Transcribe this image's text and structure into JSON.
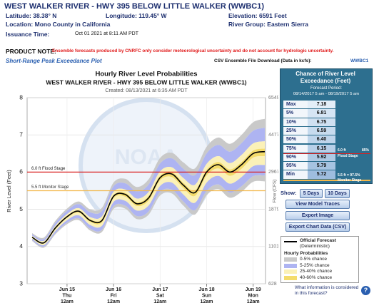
{
  "header": {
    "title": "WEST WALKER RIVER - HWY 395 BELOW LITTLE WALKER (WWBC1)",
    "latitude": "Latitude: 38.38° N",
    "longitude": "Longitude: 119.45° W",
    "elevation": "Elevation: 6591 Feet",
    "location": "Location: Mono County in California",
    "river_group": "River Group: Eastern Sierra",
    "issuance_label": "Issuance Time:",
    "issuance_time": "Oct 01 2021 at 8:11 AM PDT"
  },
  "product_note": {
    "label": "PRODUCT NOTE:",
    "text": "Ensemble forecasts produced by CNRFC only consider meteorological uncertainty and do not account for hydrologic uncertainty."
  },
  "plot_link": "Short-Range Peak Exceedance Plot",
  "csv": {
    "label": "CSV Ensemble File Download (Data in kcfs):",
    "link": "WWBC1"
  },
  "chart_data": {
    "type": "area",
    "title": "Hourly River Level Probabilities",
    "subtitle": "WEST WALKER RIVER - HWY 395 BELOW LITTLE WALKER (WWBC1)",
    "created": "Created: 08/13/2021 at 6:35 AM PDT",
    "ylabel": "River Level (Feet)",
    "y2label": "Flow (CFS)",
    "watermark": "NOAA",
    "categories": [
      null,
      null,
      null,
      [
        "Jun 15",
        "Thu",
        "12am"
      ],
      null,
      null,
      null,
      [
        "Jun 16",
        "Fri",
        "12am"
      ],
      null,
      null,
      null,
      [
        "Jun 17",
        "Sat",
        "12am"
      ],
      null,
      null,
      null,
      [
        "Jun 18",
        "Sun",
        "12am"
      ],
      null,
      null,
      null,
      [
        "Jun 19",
        "Mon",
        "12am"
      ],
      null
    ],
    "ylim": [
      3,
      8
    ],
    "yticks": [
      3,
      4,
      5,
      6,
      7,
      8
    ],
    "y2ticks": [
      628,
      1101,
      1879,
      2967,
      4477,
      6549
    ],
    "grid": true,
    "thresholds": [
      {
        "value": 6.0,
        "label": "6.0 ft Flood Stage",
        "color": "#d92020"
      },
      {
        "value": 5.5,
        "label": "5.5 ft Monitor Stage",
        "color": "#f2b84b"
      }
    ],
    "bands": [
      {
        "name": "0-5% chance",
        "color": "#c9c9c9"
      },
      {
        "name": "5-25% chance",
        "color": "#aeb4f2"
      },
      {
        "name": "25-40% chance",
        "color": "#fbf1b8"
      },
      {
        "name": "40-60% chance",
        "color": "#f4dc6c"
      }
    ],
    "envelope": [
      [
        4.36,
        4.24,
        4.69,
        5.02,
        5.21,
        5.0,
        5.04,
        5.72,
        5.82,
        5.6,
        5.8,
        6.38,
        6.52,
        6.26,
        6.1,
        6.68,
        6.93,
        6.76,
        7.0,
        7.34,
        7.43
      ],
      [
        4.33,
        4.2,
        4.64,
        4.96,
        5.14,
        4.92,
        4.95,
        5.62,
        5.7,
        5.48,
        5.66,
        6.23,
        6.37,
        6.09,
        5.92,
        6.5,
        6.73,
        6.55,
        6.78,
        7.11,
        7.19
      ],
      [
        4.29,
        4.15,
        4.56,
        4.87,
        5.03,
        4.79,
        4.81,
        5.47,
        5.53,
        5.29,
        5.46,
        6.02,
        6.13,
        5.84,
        5.66,
        6.22,
        6.43,
        6.24,
        6.46,
        6.77,
        6.83
      ],
      [
        4.26,
        4.11,
        4.52,
        4.82,
        4.97,
        4.73,
        4.73,
        5.38,
        5.44,
        5.19,
        5.35,
        5.9,
        6.0,
        5.71,
        5.51,
        6.06,
        6.27,
        6.07,
        6.27,
        6.58,
        6.63
      ],
      [
        4.24,
        4.08,
        4.47,
        4.77,
        4.91,
        4.66,
        4.65,
        5.3,
        5.34,
        5.09,
        5.23,
        5.78,
        5.87,
        5.57,
        5.36,
        5.91,
        6.1,
        5.9,
        6.09,
        6.39,
        6.43
      ],
      [
        4.21,
        4.04,
        4.42,
        4.71,
        4.84,
        4.58,
        4.56,
        5.2,
        5.23,
        4.97,
        5.1,
        5.63,
        5.72,
        5.4,
        5.18,
        5.72,
        5.9,
        5.69,
        5.87,
        6.16,
        6.19
      ],
      [
        4.17,
        4.0,
        4.36,
        4.64,
        4.76,
        4.48,
        4.45,
        5.08,
        5.1,
        4.82,
        4.94,
        5.47,
        5.53,
        5.21,
        4.98,
        5.5,
        5.67,
        5.45,
        5.62,
        5.89,
        5.91
      ],
      [
        4.15,
        3.97,
        4.33,
        4.6,
        4.71,
        4.43,
        4.39,
        5.01,
        5.02,
        4.74,
        4.85,
        5.37,
        5.43,
        5.1,
        4.86,
        5.38,
        5.54,
        5.31,
        5.47,
        5.74,
        5.75
      ]
    ],
    "forecast": {
      "name": "Official Forecast",
      "note": "(Deterministic)",
      "color": "#000000",
      "values": [
        4.25,
        4.1,
        4.5,
        4.8,
        4.95,
        4.7,
        4.7,
        5.35,
        5.4,
        5.15,
        5.3,
        5.85,
        5.95,
        5.65,
        5.45,
        6.0,
        6.2,
        6.0,
        6.2,
        6.5,
        6.55
      ]
    }
  },
  "exceedance": {
    "title": "Chance of River Level Exceedance (Feet)",
    "period_label": "Forecast Period:",
    "period": "08/14/2017 5 am - 08/19/2017 5 am",
    "rows": [
      [
        "Max",
        "7.18"
      ],
      [
        "5%",
        "6.81"
      ],
      [
        "10%",
        "6.75"
      ],
      [
        "25%",
        "6.59"
      ],
      [
        "50%",
        "6.40"
      ],
      [
        "75%",
        "6.15"
      ],
      [
        "90%",
        "5.92"
      ],
      [
        "95%",
        "5.79"
      ],
      [
        "Min",
        "5.72"
      ]
    ],
    "flood_note": [
      "6.0 ft",
      "85%",
      "Flood Stage"
    ],
    "monitor_note": [
      "5.5 ft = 97.5%",
      "Monitor Stage"
    ]
  },
  "controls": {
    "show": "Show:",
    "days": [
      "5 Days",
      "10 Days"
    ],
    "buttons": [
      "View Model Traces",
      "Export Image",
      "Export Chart Data (CSV)"
    ]
  },
  "legend": {
    "title": "Hourly Probabilities"
  },
  "help": "What information is considered in this forecast?"
}
